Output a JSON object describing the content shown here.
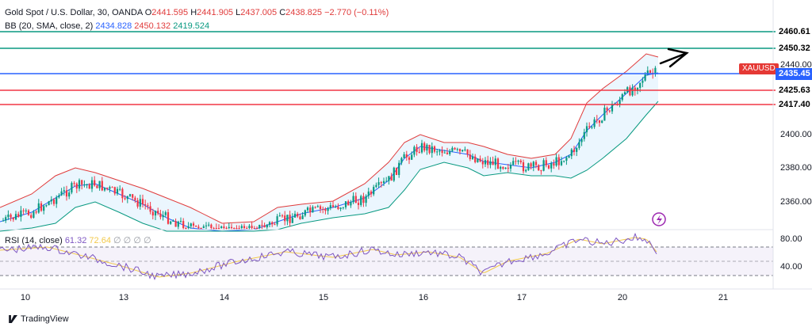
{
  "header": {
    "symbol_line": "Gold Spot / U.S. Dollar, 30, OANDA",
    "o_label": "O",
    "o_value": "2441.595",
    "h_label": "H",
    "h_value": "2441.905",
    "l_label": "L",
    "l_value": "2437.005",
    "c_label": "C",
    "c_value": "2438.825",
    "change": "−2.770 (−0.11%)"
  },
  "bb_legend": {
    "label": "BB (20, SMA, close, 2)",
    "basis": "2434.828",
    "upper": "2450.132",
    "lower": "2419.524"
  },
  "rsi_legend": {
    "label": "RSI (14, close)",
    "rsi": "61.32",
    "ma": "72.64",
    "z1": "∅",
    "z2": "∅",
    "z3": "∅",
    "z4": "∅"
  },
  "symbol_tag": "XAUUSD",
  "levels": [
    {
      "price": 2460.61,
      "label": "2460.61",
      "color": "#089981",
      "style": "outline"
    },
    {
      "price": 2450.32,
      "label": "2450.32",
      "color": "#089981",
      "style": "outline"
    },
    {
      "price": 2435.45,
      "label": "2435.45",
      "color": "#2962ff",
      "style": "fill"
    },
    {
      "price": 2425.63,
      "label": "2425.63",
      "color": "#f23645",
      "style": "outline"
    },
    {
      "price": 2417.4,
      "label": "2417.40",
      "color": "#f23645",
      "style": "outline"
    }
  ],
  "price_axis": [
    "2440.00",
    "2400.00",
    "2380.00",
    "2360.00"
  ],
  "rsi_axis": [
    "80.00",
    "40.00"
  ],
  "x_axis": [
    "10",
    "13",
    "14",
    "15",
    "16",
    "17",
    "20",
    "21"
  ],
  "footer": "TradingView",
  "colors": {
    "bull": "#089981",
    "bear": "#f23645",
    "bb_upper": "#e03b3b",
    "bb_lower": "#089981",
    "bb_basis": "#2962ff",
    "rsi": "#7e57c2",
    "rsi_ma": "#f2c94c"
  }
}
